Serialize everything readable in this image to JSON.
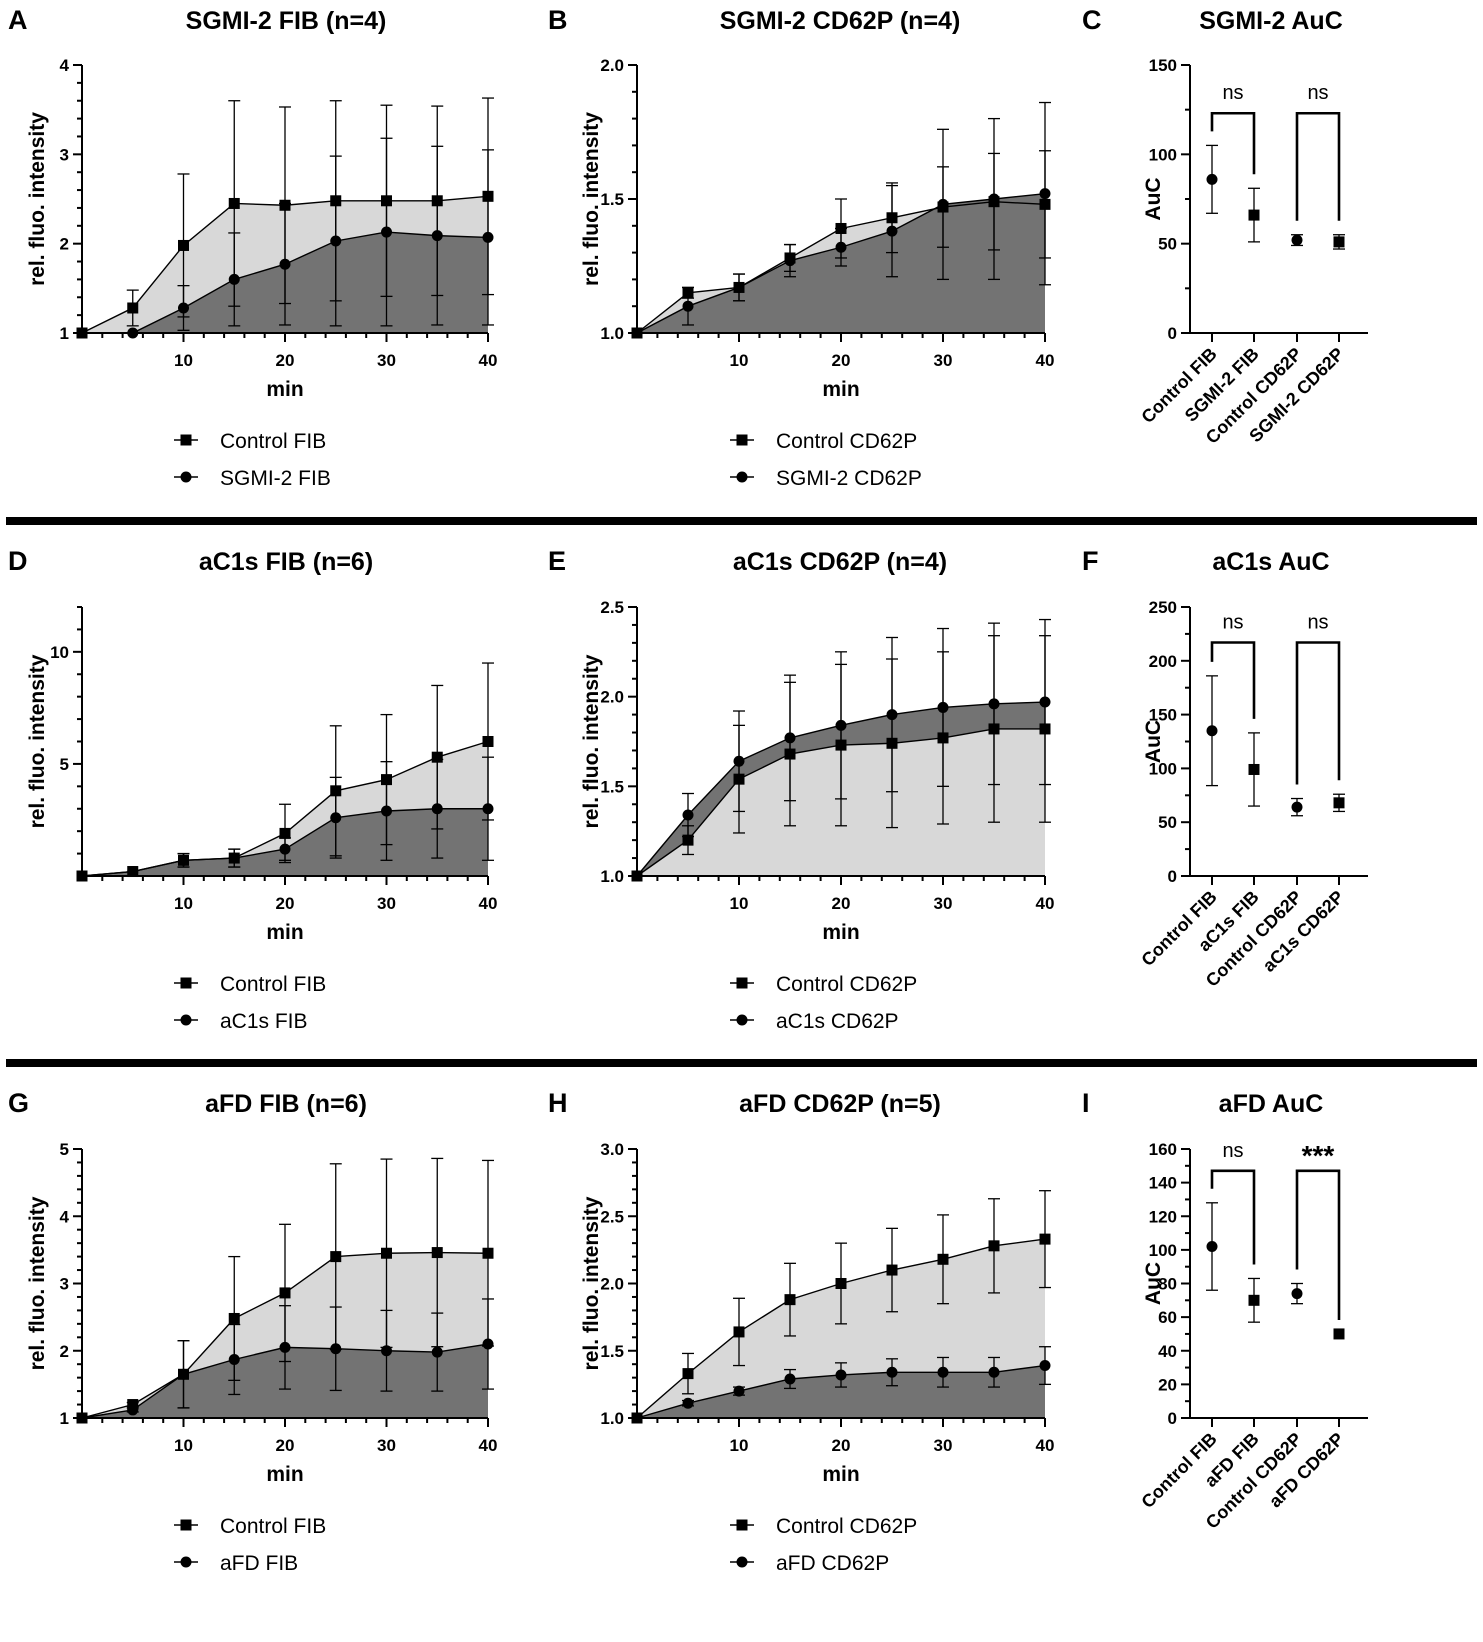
{
  "colors": {
    "fill_light": "#d8d8d8",
    "fill_dark": "#737373",
    "ink": "#000000",
    "divider": "#000000"
  },
  "chart_data": [
    {
      "id": "A",
      "letter": "A",
      "type": "area",
      "title": "SGMI-2 FIB (n=4)",
      "xlabel": "min",
      "ylabel": "rel. fluo. intensity",
      "xlim": [
        0,
        40
      ],
      "ylim": [
        1,
        4
      ],
      "xticks": [
        10,
        20,
        30,
        40
      ],
      "yticks": [
        1,
        2,
        3,
        4
      ],
      "x": [
        0,
        5,
        10,
        15,
        20,
        25,
        30,
        35,
        40
      ],
      "series": [
        {
          "name": "Control FIB",
          "marker": "square",
          "values": [
            1,
            1.28,
            1.98,
            2.45,
            2.43,
            2.48,
            2.48,
            2.48,
            2.53
          ],
          "errors": [
            0,
            0.2,
            0.8,
            1.15,
            1.1,
            1.12,
            1.07,
            1.06,
            1.1
          ]
        },
        {
          "name": "SGMI-2 FIB",
          "marker": "circle",
          "values": [
            1,
            1,
            1.28,
            1.6,
            1.77,
            2.03,
            2.13,
            2.09,
            2.07
          ],
          "errors": [
            0,
            0,
            0.25,
            0.52,
            0.68,
            0.95,
            1.05,
            1.0,
            0.98
          ]
        }
      ],
      "legend": [
        "Control FIB",
        "SGMI-2 FIB"
      ]
    },
    {
      "id": "B",
      "letter": "B",
      "type": "area",
      "title": "SGMI-2 CD62P (n=4)",
      "xlabel": "min",
      "ylabel": "rel. fluo. intensity",
      "xlim": [
        0,
        40
      ],
      "ylim": [
        1.0,
        2.0
      ],
      "xticks": [
        10,
        20,
        30,
        40
      ],
      "yticks": [
        1.0,
        1.5,
        2.0
      ],
      "x": [
        0,
        5,
        10,
        15,
        20,
        25,
        30,
        35,
        40
      ],
      "series": [
        {
          "name": "Control CD62P",
          "marker": "square",
          "values": [
            1,
            1.15,
            1.17,
            1.28,
            1.39,
            1.43,
            1.47,
            1.49,
            1.48
          ],
          "errors": [
            0,
            0.02,
            0.05,
            0.05,
            0.11,
            0.13,
            0.15,
            0.18,
            0.2
          ]
        },
        {
          "name": "SGMI-2 CD62P",
          "marker": "circle",
          "values": [
            1,
            1.1,
            1.17,
            1.27,
            1.32,
            1.38,
            1.48,
            1.5,
            1.52
          ],
          "errors": [
            0,
            0.07,
            0.05,
            0.06,
            0.07,
            0.17,
            0.28,
            0.3,
            0.34
          ]
        }
      ],
      "legend": [
        "Control CD62P",
        "SGMI-2 CD62P"
      ]
    },
    {
      "id": "C",
      "letter": "C",
      "type": "scatter",
      "title": "SGMI-2 AuC",
      "ylabel": "AuC",
      "ylim": [
        0,
        150
      ],
      "yticks": [
        0,
        50,
        100,
        150
      ],
      "categories": [
        "Control FIB",
        "SGMI-2 FIB",
        "Control CD62P",
        "SGMI-2 CD62P"
      ],
      "values": [
        86,
        66,
        52,
        51
      ],
      "errors": [
        19,
        15,
        3,
        4
      ],
      "markers": [
        "circle",
        "square",
        "circle",
        "square"
      ],
      "significance": [
        {
          "pair": [
            0,
            1
          ],
          "label": "ns",
          "level": 123
        },
        {
          "pair": [
            2,
            3
          ],
          "label": "ns",
          "level": 123
        }
      ]
    },
    {
      "id": "D",
      "letter": "D",
      "type": "area",
      "title": "aC1s FIB (n=6)",
      "xlabel": "min",
      "ylabel": "rel. fluo. intensity",
      "xlim": [
        0,
        40
      ],
      "ylim": [
        0,
        12
      ],
      "xticks": [
        10,
        20,
        30,
        40
      ],
      "yticks": [
        5,
        10
      ],
      "x": [
        0,
        5,
        10,
        15,
        20,
        25,
        30,
        35,
        40
      ],
      "series": [
        {
          "name": "Control FIB",
          "marker": "square",
          "values": [
            0,
            0.2,
            0.7,
            0.8,
            1.9,
            3.8,
            4.3,
            5.3,
            6.0
          ],
          "errors": [
            0,
            0,
            0.3,
            0.4,
            1.3,
            2.9,
            2.9,
            3.2,
            3.5
          ]
        },
        {
          "name": "aC1s FIB",
          "marker": "circle",
          "values": [
            0,
            0.2,
            0.7,
            0.8,
            1.2,
            2.6,
            2.9,
            3.0,
            3.0
          ],
          "errors": [
            0,
            0,
            0.3,
            0.4,
            0.5,
            1.8,
            2.2,
            2.2,
            2.3
          ]
        }
      ],
      "legend": [
        "Control FIB",
        "aC1s FIB"
      ]
    },
    {
      "id": "E",
      "letter": "E",
      "type": "area",
      "title": "aC1s CD62P (n=4)",
      "xlabel": "min",
      "ylabel": "rel. fluo. intensity",
      "xlim": [
        0,
        40
      ],
      "ylim": [
        1.0,
        2.5
      ],
      "xticks": [
        10,
        20,
        30,
        40
      ],
      "yticks": [
        1.0,
        1.5,
        2.0,
        2.5
      ],
      "x": [
        0,
        5,
        10,
        15,
        20,
        25,
        30,
        35,
        40
      ],
      "series": [
        {
          "name": "Control CD62P",
          "marker": "square",
          "values": [
            1,
            1.2,
            1.54,
            1.68,
            1.73,
            1.74,
            1.77,
            1.82,
            1.82
          ],
          "errors": [
            0,
            0.08,
            0.3,
            0.4,
            0.45,
            0.47,
            0.48,
            0.52,
            0.52
          ]
        },
        {
          "name": "aC1s CD62P",
          "marker": "circle",
          "values": [
            1,
            1.34,
            1.64,
            1.77,
            1.84,
            1.9,
            1.94,
            1.96,
            1.97
          ],
          "errors": [
            0,
            0.12,
            0.28,
            0.35,
            0.41,
            0.43,
            0.44,
            0.45,
            0.46
          ]
        }
      ],
      "legend": [
        "Control CD62P",
        "aC1s CD62P"
      ]
    },
    {
      "id": "F",
      "letter": "F",
      "type": "scatter",
      "title": "aC1s AuC",
      "ylabel": "AuC",
      "ylim": [
        0,
        250
      ],
      "yticks": [
        0,
        50,
        100,
        150,
        200,
        250
      ],
      "categories": [
        "Control FIB",
        "aC1s FIB",
        "Control CD62P",
        "aC1s CD62P"
      ],
      "values": [
        135,
        99,
        64,
        68
      ],
      "errors": [
        51,
        34,
        8,
        8
      ],
      "markers": [
        "circle",
        "square",
        "circle",
        "square"
      ],
      "significance": [
        {
          "pair": [
            0,
            1
          ],
          "label": "ns",
          "level": 217
        },
        {
          "pair": [
            2,
            3
          ],
          "label": "ns",
          "level": 217
        }
      ]
    },
    {
      "id": "G",
      "letter": "G",
      "type": "area",
      "title": "aFD FIB (n=6)",
      "xlabel": "min",
      "ylabel": "rel. fluo. intensity",
      "xlim": [
        0,
        40
      ],
      "ylim": [
        1,
        5
      ],
      "xticks": [
        10,
        20,
        30,
        40
      ],
      "yticks": [
        1,
        2,
        3,
        4,
        5
      ],
      "x": [
        0,
        5,
        10,
        15,
        20,
        25,
        30,
        35,
        40
      ],
      "series": [
        {
          "name": "Control FIB",
          "marker": "square",
          "values": [
            1,
            1.2,
            1.65,
            2.48,
            2.86,
            3.4,
            3.45,
            3.46,
            3.45
          ],
          "errors": [
            0,
            0.03,
            0.5,
            0.92,
            1.02,
            1.38,
            1.4,
            1.4,
            1.38
          ]
        },
        {
          "name": "aFD FIB",
          "marker": "circle",
          "values": [
            1,
            1.12,
            1.65,
            1.87,
            2.05,
            2.03,
            2.0,
            1.98,
            2.1
          ],
          "errors": [
            0,
            0.03,
            0.5,
            0.52,
            0.62,
            0.62,
            0.6,
            0.58,
            0.67
          ]
        }
      ],
      "legend": [
        "Control FIB",
        "aFD FIB"
      ]
    },
    {
      "id": "H",
      "letter": "H",
      "type": "area",
      "title": "aFD CD62P (n=5)",
      "xlabel": "min",
      "ylabel": "rel. fluo. intensity",
      "xlim": [
        0,
        40
      ],
      "ylim": [
        1.0,
        3.0
      ],
      "xticks": [
        10,
        20,
        30,
        40
      ],
      "yticks": [
        1.0,
        1.5,
        2.0,
        2.5,
        3.0
      ],
      "x": [
        0,
        5,
        10,
        15,
        20,
        25,
        30,
        35,
        40
      ],
      "series": [
        {
          "name": "Control CD62P",
          "marker": "square",
          "values": [
            1,
            1.33,
            1.64,
            1.88,
            2.0,
            2.1,
            2.18,
            2.28,
            2.33
          ],
          "errors": [
            0,
            0.15,
            0.25,
            0.27,
            0.3,
            0.31,
            0.33,
            0.35,
            0.36
          ]
        },
        {
          "name": "aFD CD62P",
          "marker": "circle",
          "values": [
            1,
            1.11,
            1.2,
            1.29,
            1.32,
            1.34,
            1.34,
            1.34,
            1.39
          ],
          "errors": [
            0,
            0.02,
            0.03,
            0.07,
            0.09,
            0.1,
            0.11,
            0.11,
            0.14
          ]
        }
      ],
      "legend": [
        "Control CD62P",
        "aFD CD62P"
      ]
    },
    {
      "id": "I",
      "letter": "I",
      "type": "scatter",
      "title": "aFD AuC",
      "ylabel": "AuC",
      "ylim": [
        0,
        160
      ],
      "yticks": [
        0,
        20,
        40,
        60,
        80,
        100,
        120,
        140,
        160
      ],
      "categories": [
        "Control FIB",
        "aFD FIB",
        "Control CD62P",
        "aFD CD62P"
      ],
      "values": [
        102,
        70,
        74,
        50
      ],
      "errors": [
        26,
        13,
        6,
        0
      ],
      "markers": [
        "circle",
        "square",
        "circle",
        "square"
      ],
      "significance": [
        {
          "pair": [
            0,
            1
          ],
          "label": "ns",
          "level": 147
        },
        {
          "pair": [
            2,
            3
          ],
          "label": "***",
          "level": 147
        }
      ]
    }
  ]
}
